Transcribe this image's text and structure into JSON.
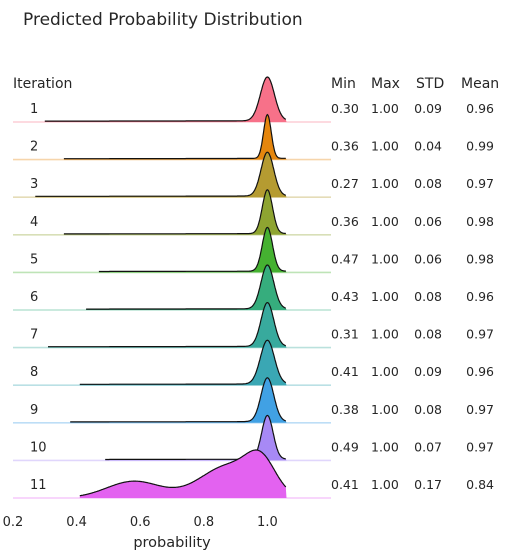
{
  "chart_data": {
    "type": "area",
    "title": "Predicted Probability Distribution",
    "row_header": "Iteration",
    "xlabel": "probability",
    "xlim": [
      0.2,
      1.2
    ],
    "x_ticks": [
      "0.2",
      "0.4",
      "0.6",
      "0.8",
      "1.0"
    ],
    "x_tick_values": [
      0.2,
      0.4,
      0.6,
      0.8,
      1.0
    ],
    "stat_headers": [
      "Min",
      "Max",
      "STD",
      "Mean"
    ],
    "grid": false,
    "series": [
      {
        "name": "1",
        "color": "#f77189",
        "min": "0.30",
        "max": "1.00",
        "std": "0.09",
        "mean": "0.96"
      },
      {
        "name": "2",
        "color": "#e5860d",
        "min": "0.36",
        "max": "1.00",
        "std": "0.04",
        "mean": "0.99"
      },
      {
        "name": "3",
        "color": "#b59b31",
        "min": "0.27",
        "max": "1.00",
        "std": "0.08",
        "mean": "0.97"
      },
      {
        "name": "4",
        "color": "#8ea431",
        "min": "0.36",
        "max": "1.00",
        "std": "0.06",
        "mean": "0.98"
      },
      {
        "name": "5",
        "color": "#45b131",
        "min": "0.47",
        "max": "1.00",
        "std": "0.06",
        "mean": "0.98"
      },
      {
        "name": "6",
        "color": "#36ad7d",
        "min": "0.43",
        "max": "1.00",
        "std": "0.08",
        "mean": "0.96"
      },
      {
        "name": "7",
        "color": "#38aa9d",
        "min": "0.31",
        "max": "1.00",
        "std": "0.08",
        "mean": "0.97"
      },
      {
        "name": "8",
        "color": "#3aa7b4",
        "min": "0.41",
        "max": "1.00",
        "std": "0.09",
        "mean": "0.96"
      },
      {
        "name": "9",
        "color": "#41a1e4",
        "min": "0.38",
        "max": "1.00",
        "std": "0.08",
        "mean": "0.97"
      },
      {
        "name": "10",
        "color": "#a789f5",
        "min": "0.49",
        "max": "1.00",
        "std": "0.07",
        "mean": "0.97"
      },
      {
        "name": "11",
        "color": "#e362f0",
        "min": "0.41",
        "max": "1.00",
        "std": "0.17",
        "mean": "0.84"
      }
    ]
  }
}
